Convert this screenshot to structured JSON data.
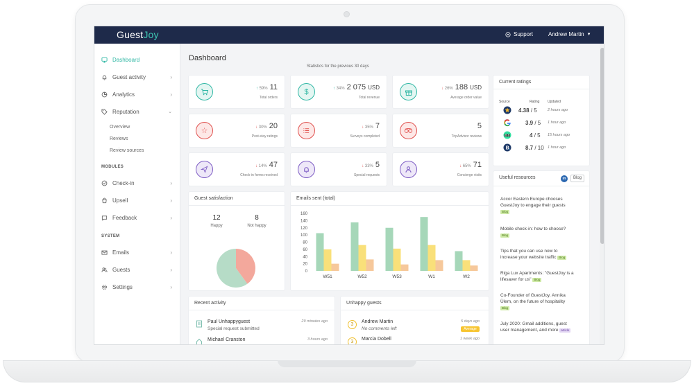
{
  "app": {
    "logo_a": "Guest",
    "logo_b": "Joy",
    "support": "Support",
    "user": "Andrew Martin"
  },
  "sidebar": {
    "items": [
      {
        "label": "Dashboard",
        "icon": "monitor-icon"
      },
      {
        "label": "Guest activity",
        "icon": "bell-icon"
      },
      {
        "label": "Analytics",
        "icon": "pie-icon"
      },
      {
        "label": "Reputation",
        "icon": "tag-icon"
      }
    ],
    "reputation_sub": [
      "Overview",
      "Reviews",
      "Review sources"
    ],
    "modules_label": "MODULES",
    "modules": [
      {
        "label": "Check-in",
        "icon": "check-icon"
      },
      {
        "label": "Upsell",
        "icon": "bag-icon"
      },
      {
        "label": "Feedback",
        "icon": "chat-icon"
      }
    ],
    "system_label": "SYSTEM",
    "system": [
      {
        "label": "Emails",
        "icon": "mail-icon"
      },
      {
        "label": "Guests",
        "icon": "users-icon"
      },
      {
        "label": "Settings",
        "icon": "gear-icon"
      }
    ]
  },
  "main": {
    "title": "Dashboard",
    "subtitle": "Statistics for the previous 30 days"
  },
  "stats": [
    {
      "pct": "59%",
      "dir": "up",
      "value": "11",
      "unit": "",
      "label": "Total orders",
      "color": "#2fb7a4"
    },
    {
      "pct": "34%",
      "dir": "up",
      "value": "2 075",
      "unit": "USD",
      "label": "Total revenue",
      "color": "#2fb7a4"
    },
    {
      "pct": "26%",
      "dir": "down",
      "value": "188",
      "unit": "USD",
      "label": "Average order value",
      "color": "#2fb7a4"
    },
    {
      "pct": "30%",
      "dir": "down",
      "value": "20",
      "unit": "",
      "label": "Post-stay ratings",
      "color": "#e0524f"
    },
    {
      "pct": "35%",
      "dir": "down",
      "value": "7",
      "unit": "",
      "label": "Surveys completed",
      "color": "#e0524f"
    },
    {
      "pct": "",
      "dir": "",
      "value": "5",
      "unit": "",
      "label": "TripAdvisor reviews",
      "color": "#e0524f"
    },
    {
      "pct": "14%",
      "dir": "down",
      "value": "47",
      "unit": "",
      "label": "Check-in forms received",
      "color": "#7d5cc4"
    },
    {
      "pct": "33%",
      "dir": "down",
      "value": "5",
      "unit": "",
      "label": "Special requests",
      "color": "#7d5cc4"
    },
    {
      "pct": "65%",
      "dir": "down",
      "value": "71",
      "unit": "",
      "label": "Concierge visits",
      "color": "#7d5cc4"
    }
  ],
  "satisfaction": {
    "title": "Guest satisfaction",
    "happy": "12",
    "happy_label": "Happy",
    "not_happy": "8",
    "not_happy_label": "Not happy",
    "colors": [
      "#b6dcc7",
      "#f3a89c"
    ]
  },
  "emails_title": "Emails sent (total)",
  "chart_data": {
    "type": "bar",
    "categories": [
      "W51",
      "W52",
      "W53",
      "W1",
      "W2"
    ],
    "series": [
      {
        "values": [
          105,
          135,
          120,
          150,
          55
        ],
        "color": "#a6d7b9"
      },
      {
        "values": [
          60,
          72,
          62,
          72,
          30
        ],
        "color": "#f9e07a"
      },
      {
        "values": [
          20,
          32,
          18,
          30,
          15
        ],
        "color": "#f6c89b"
      }
    ],
    "yticks": [
      "0",
      "20",
      "40",
      "60",
      "80",
      "100",
      "120",
      "140",
      "160"
    ],
    "ylim": [
      0,
      160
    ]
  },
  "ratings": {
    "title": "Current ratings",
    "headers": [
      "Source",
      "Rating",
      "Updated"
    ],
    "rows": [
      {
        "icon": "booking-star-icon",
        "rating": "4.38",
        "max": "/ 5",
        "updated": "2 hours ago"
      },
      {
        "icon": "google-icon",
        "rating": "3.9",
        "max": "/ 5",
        "updated": "1 hour ago"
      },
      {
        "icon": "tripadvisor-icon",
        "rating": "4",
        "max": "/ 5",
        "updated": "15 hours ago"
      },
      {
        "icon": "booking-b-icon",
        "rating": "8.7",
        "max": "/ 10",
        "updated": "1 hour ago"
      }
    ]
  },
  "resources": {
    "title": "Useful resources",
    "blog_label": "Blog",
    "items": [
      {
        "text": "Accor Eastern Europe chooses GuestJoy to engage their guests",
        "tag": "Blog",
        "type": "blog"
      },
      {
        "text": "Mobile check-in: how to choose?",
        "tag": "Blog",
        "type": "blog"
      },
      {
        "text": "Tips that you can use now to increase your website traffic",
        "tag": "Blog",
        "type": "blog"
      },
      {
        "text": "Riga Lux Apartments: \"GuestJoy is a lifesaver for us\"",
        "tag": "Blog",
        "type": "blog"
      },
      {
        "text": "Co-Founder of GuestJoy, Annika Ülem, on the future of hospitality",
        "tag": "Blog",
        "type": "blog"
      },
      {
        "text": "July 2020: Gmail additions, guest user management, and more",
        "tag": "article",
        "type": "article"
      }
    ]
  },
  "recent": {
    "title": "Recent activity",
    "items": [
      {
        "name": "Paul Unhappyguest",
        "detail": "Special request submitted",
        "time": "29 minutes ago"
      },
      {
        "name": "Michael Cranston",
        "detail": "",
        "time": "3 hours ago"
      }
    ]
  },
  "unhappy": {
    "title": "Unhappy guests",
    "items": [
      {
        "score": "3",
        "name": "Andrew Martin",
        "detail": "No comments left",
        "time": "5 days ago",
        "badge": "Average"
      },
      {
        "score": "3",
        "name": "Marcia Dobell",
        "detail": "",
        "time": "1 week ago",
        "badge": ""
      }
    ]
  }
}
